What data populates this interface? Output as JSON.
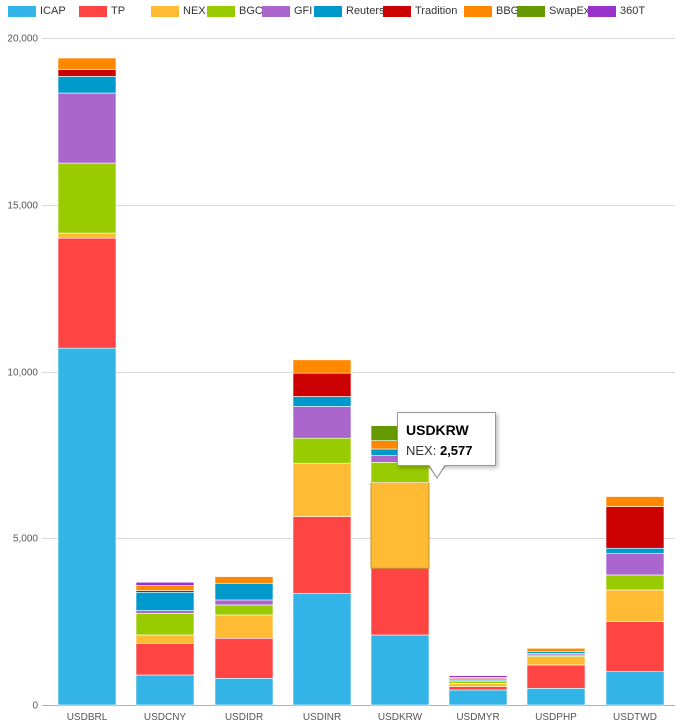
{
  "chart_data": {
    "type": "bar",
    "stacked": true,
    "title": "",
    "xlabel": "",
    "ylabel": "",
    "ylim": [
      0,
      20000
    ],
    "yticks": [
      {
        "value": 0,
        "label": "0"
      },
      {
        "value": 5000,
        "label": "5,000"
      },
      {
        "value": 10000,
        "label": "10,000"
      },
      {
        "value": 15000,
        "label": "15,000"
      },
      {
        "value": 20000,
        "label": "20,000"
      }
    ],
    "grid": true,
    "legend": "top",
    "categories": [
      "USDBRL",
      "USDCNY",
      "USDIDR",
      "USDINR",
      "USDKRW",
      "USDMYR",
      "USDPHP",
      "USDTWD"
    ],
    "series": [
      {
        "name": "ICAP",
        "color": "#32b4e6",
        "values": [
          10700,
          900,
          800,
          3350,
          2100,
          450,
          500,
          1000
        ]
      },
      {
        "name": "TP",
        "color": "#ff4444",
        "values": [
          3300,
          950,
          1200,
          2300,
          2000,
          100,
          700,
          1500
        ]
      },
      {
        "name": "NEX",
        "color": "#ffbb33",
        "values": [
          150,
          250,
          700,
          1600,
          2577,
          100,
          250,
          950
        ]
      },
      {
        "name": "BGC",
        "color": "#99cc00",
        "values": [
          2100,
          650,
          300,
          750,
          600,
          50,
          50,
          450
        ]
      },
      {
        "name": "GFI",
        "color": "#aa66cc",
        "values": [
          2100,
          80,
          150,
          950,
          200,
          30,
          50,
          650
        ]
      },
      {
        "name": "Reuters",
        "color": "#0099cc",
        "values": [
          500,
          550,
          500,
          300,
          200,
          30,
          50,
          150
        ]
      },
      {
        "name": "Tradition",
        "color": "#cc0000",
        "values": [
          200,
          50,
          0,
          700,
          0,
          40,
          0,
          1250
        ]
      },
      {
        "name": "BBG",
        "color": "#ff8800",
        "values": [
          350,
          150,
          200,
          400,
          250,
          30,
          100,
          300
        ]
      },
      {
        "name": "SwapEx",
        "color": "#669900",
        "values": [
          0,
          0,
          0,
          0,
          450,
          0,
          0,
          0
        ]
      },
      {
        "name": "360T",
        "color": "#9933cc",
        "values": [
          0,
          100,
          0,
          0,
          0,
          50,
          0,
          0
        ]
      }
    ]
  },
  "tooltip": {
    "title": "USDKRW",
    "series_label": "NEX:",
    "value": "2,577"
  }
}
